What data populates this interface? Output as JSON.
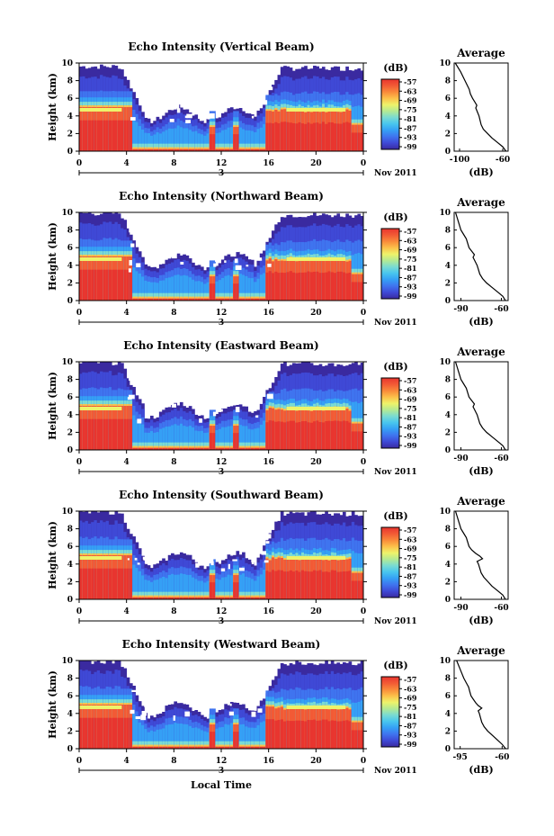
{
  "colors": {
    "scale": [
      "#3a2aa0",
      "#3f49d6",
      "#3f74ef",
      "#35a0f5",
      "#48c6ee",
      "#7adbd2",
      "#b4ea93",
      "#eef36a",
      "#fcc04a",
      "#f98a3a",
      "#f25a35",
      "#e8352f"
    ],
    "clear_sky": "#ffffff"
  },
  "chart_data": [
    {
      "type": "heatmap",
      "title": "Echo Intensity (Vertical Beam)",
      "ylabel": "Height (km)",
      "ylim": [
        0,
        10
      ],
      "yticks": [
        "0",
        "2",
        "4",
        "6",
        "8",
        "10"
      ],
      "xlim": [
        0,
        24
      ],
      "xticks": [
        "0",
        "4",
        "8",
        "12",
        "16",
        "20",
        "0"
      ],
      "date_label": "3",
      "month_label": "Nov 2011",
      "colorbar": {
        "label": "(dB)",
        "ticks": [
          "-57",
          "-63",
          "-69",
          "-75",
          "-81",
          "-87",
          "-93",
          "-99"
        ]
      },
      "profile": {
        "title": "Average",
        "xlabel": "(dB)",
        "xticks": [
          "-100",
          "-60"
        ],
        "xlim": [
          -105,
          -55
        ],
        "yticks": [
          "0",
          "2",
          "4",
          "6",
          "8",
          "10"
        ],
        "x": [
          -57,
          -60,
          -65,
          -70,
          -74,
          -78,
          -80,
          -81,
          -82,
          -83,
          -84,
          -85,
          -84,
          -86,
          -88,
          -90,
          -91,
          -93,
          -95,
          -99,
          -104
        ],
        "y": [
          0,
          0.5,
          1,
          1.5,
          2,
          2.5,
          3,
          3.5,
          4,
          4.3,
          4.6,
          4.9,
          5.2,
          5.6,
          6,
          6.5,
          7,
          7.5,
          8,
          9,
          10
        ]
      }
    },
    {
      "type": "heatmap",
      "title": "Echo Intensity (Northward Beam)",
      "ylabel": "Height (km)",
      "ylim": [
        0,
        10
      ],
      "yticks": [
        "0",
        "2",
        "4",
        "6",
        "8",
        "10"
      ],
      "xlim": [
        0,
        24
      ],
      "xticks": [
        "0",
        "4",
        "8",
        "12",
        "16",
        "20",
        "0"
      ],
      "date_label": "3",
      "month_label": "Nov 2011",
      "colorbar": {
        "label": "(dB)",
        "ticks": [
          "-57",
          "-63",
          "-69",
          "-75",
          "-81",
          "-87",
          "-93",
          "-99"
        ]
      },
      "profile": {
        "title": "Average",
        "xlabel": "(dB)",
        "xticks": [
          "-90",
          "-60"
        ],
        "xlim": [
          -95,
          -55
        ],
        "yticks": [
          "0",
          "2",
          "4",
          "6",
          "8",
          "10"
        ],
        "x": [
          -57,
          -59,
          -63,
          -67,
          -71,
          -74,
          -76,
          -77,
          -78,
          -79,
          -80,
          -81,
          -80,
          -82,
          -84,
          -85,
          -86,
          -88,
          -90,
          -92,
          -94
        ],
        "y": [
          0,
          0.5,
          1,
          1.5,
          2,
          2.5,
          3,
          3.5,
          4,
          4.3,
          4.6,
          4.9,
          5.2,
          5.6,
          6,
          6.5,
          7,
          7.5,
          8,
          9,
          10
        ]
      }
    },
    {
      "type": "heatmap",
      "title": "Echo Intensity (Eastward Beam)",
      "ylabel": "Height (km)",
      "ylim": [
        0,
        10
      ],
      "yticks": [
        "0",
        "2",
        "4",
        "6",
        "8",
        "10"
      ],
      "xlim": [
        0,
        24
      ],
      "xticks": [
        "0",
        "4",
        "8",
        "12",
        "16",
        "20",
        "0"
      ],
      "date_label": "3",
      "month_label": "Nov 2011",
      "colorbar": {
        "label": "(dB)",
        "ticks": [
          "-57",
          "-63",
          "-69",
          "-75",
          "-81",
          "-87",
          "-93",
          "-99"
        ]
      },
      "profile": {
        "title": "Average",
        "xlabel": "(dB)",
        "xticks": [
          "-90",
          "-60"
        ],
        "xlim": [
          -95,
          -55
        ],
        "yticks": [
          "0",
          "2",
          "4",
          "6",
          "8",
          "10"
        ],
        "x": [
          -57,
          -59,
          -63,
          -67,
          -71,
          -74,
          -76,
          -77,
          -78,
          -79,
          -80,
          -81,
          -80,
          -82,
          -84,
          -85,
          -86,
          -88,
          -90,
          -92,
          -94
        ],
        "y": [
          0,
          0.5,
          1,
          1.5,
          2,
          2.5,
          3,
          3.5,
          4,
          4.3,
          4.6,
          4.9,
          5.2,
          5.6,
          6,
          6.5,
          7,
          7.5,
          8,
          9,
          10
        ]
      }
    },
    {
      "type": "heatmap",
      "title": "Echo Intensity (Southward Beam)",
      "ylabel": "Height (km)",
      "ylim": [
        0,
        10
      ],
      "yticks": [
        "0",
        "2",
        "4",
        "6",
        "8",
        "10"
      ],
      "xlim": [
        0,
        24
      ],
      "xticks": [
        "0",
        "4",
        "8",
        "12",
        "16",
        "20",
        "0"
      ],
      "date_label": "3",
      "month_label": "Nov 2011",
      "colorbar": {
        "label": "(dB)",
        "ticks": [
          "-57",
          "-63",
          "-69",
          "-75",
          "-81",
          "-87",
          "-93",
          "-99"
        ]
      },
      "profile": {
        "title": "Average",
        "xlabel": "(dB)",
        "xticks": [
          "-90",
          "-60"
        ],
        "xlim": [
          -95,
          -55
        ],
        "yticks": [
          "0",
          "2",
          "4",
          "6",
          "8",
          "10"
        ],
        "x": [
          -57,
          -59,
          -63,
          -67,
          -70,
          -73,
          -75,
          -76,
          -77,
          -78,
          -74,
          -76,
          -79,
          -82,
          -84,
          -85,
          -86,
          -88,
          -90,
          -92,
          -94
        ],
        "y": [
          0,
          0.5,
          1,
          1.5,
          2,
          2.5,
          3,
          3.5,
          4,
          4.3,
          4.6,
          4.9,
          5.2,
          5.6,
          6,
          6.5,
          7,
          7.5,
          8,
          9,
          10
        ]
      }
    },
    {
      "type": "heatmap",
      "title": "Echo Intensity (Westward Beam)",
      "ylabel": "Height (km)",
      "ylim": [
        0,
        10
      ],
      "yticks": [
        "0",
        "2",
        "4",
        "6",
        "8",
        "10"
      ],
      "xlim": [
        0,
        24
      ],
      "xticks": [
        "0",
        "4",
        "8",
        "12",
        "16",
        "20",
        "0"
      ],
      "date_label": "3",
      "month_label": "Nov 2011",
      "xlabel": "Local Time",
      "colorbar": {
        "label": "(dB)",
        "ticks": [
          "-57",
          "-63",
          "-69",
          "-75",
          "-81",
          "-87",
          "-93",
          "-99"
        ]
      },
      "profile": {
        "title": "Average",
        "xlabel": "(dB)",
        "xticks": [
          "-95",
          "-60"
        ],
        "xlim": [
          -100,
          -55
        ],
        "yticks": [
          "0",
          "2",
          "4",
          "6",
          "8",
          "10"
        ],
        "x": [
          -57,
          -60,
          -64,
          -68,
          -72,
          -75,
          -77,
          -78,
          -79,
          -80,
          -77,
          -80,
          -82,
          -84,
          -86,
          -87,
          -88,
          -90,
          -92,
          -95,
          -98
        ],
        "y": [
          0,
          0.5,
          1,
          1.5,
          2,
          2.5,
          3,
          3.5,
          4,
          4.3,
          4.6,
          4.9,
          5.2,
          5.6,
          6,
          6.5,
          7,
          7.5,
          8,
          9,
          10
        ]
      }
    }
  ]
}
